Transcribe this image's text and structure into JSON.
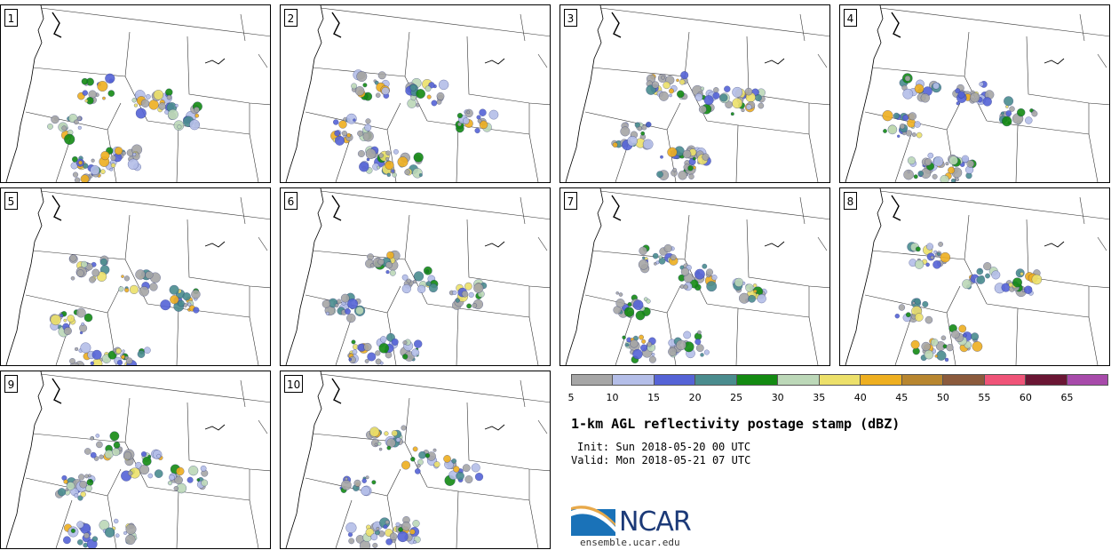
{
  "title": "1-km AGL reflectivity postage stamp (dBZ)",
  "init": "Init: Sun 2018-05-20 00 UTC",
  "valid": "Valid: Mon 2018-05-21 07 UTC",
  "logo": {
    "text": "NCAR",
    "url": "ensemble.ucar.edu"
  },
  "panels": [
    {
      "label": "1"
    },
    {
      "label": "2"
    },
    {
      "label": "3"
    },
    {
      "label": "4"
    },
    {
      "label": "5"
    },
    {
      "label": "6"
    },
    {
      "label": "7"
    },
    {
      "label": "8"
    },
    {
      "label": "9"
    },
    {
      "label": "10"
    }
  ],
  "colorbar": {
    "ticks": [
      "5",
      "10",
      "15",
      "20",
      "25",
      "30",
      "35",
      "40",
      "45",
      "50",
      "55",
      "60",
      "65"
    ],
    "colors": [
      "#a6a6a6",
      "#b4bee8",
      "#5563d6",
      "#4a8c8e",
      "#138a12",
      "#bcd8b8",
      "#ece06a",
      "#eeaf20",
      "#b8862f",
      "#8b5a3c",
      "#ef5478",
      "#6a1634",
      "#a74aaa"
    ]
  }
}
